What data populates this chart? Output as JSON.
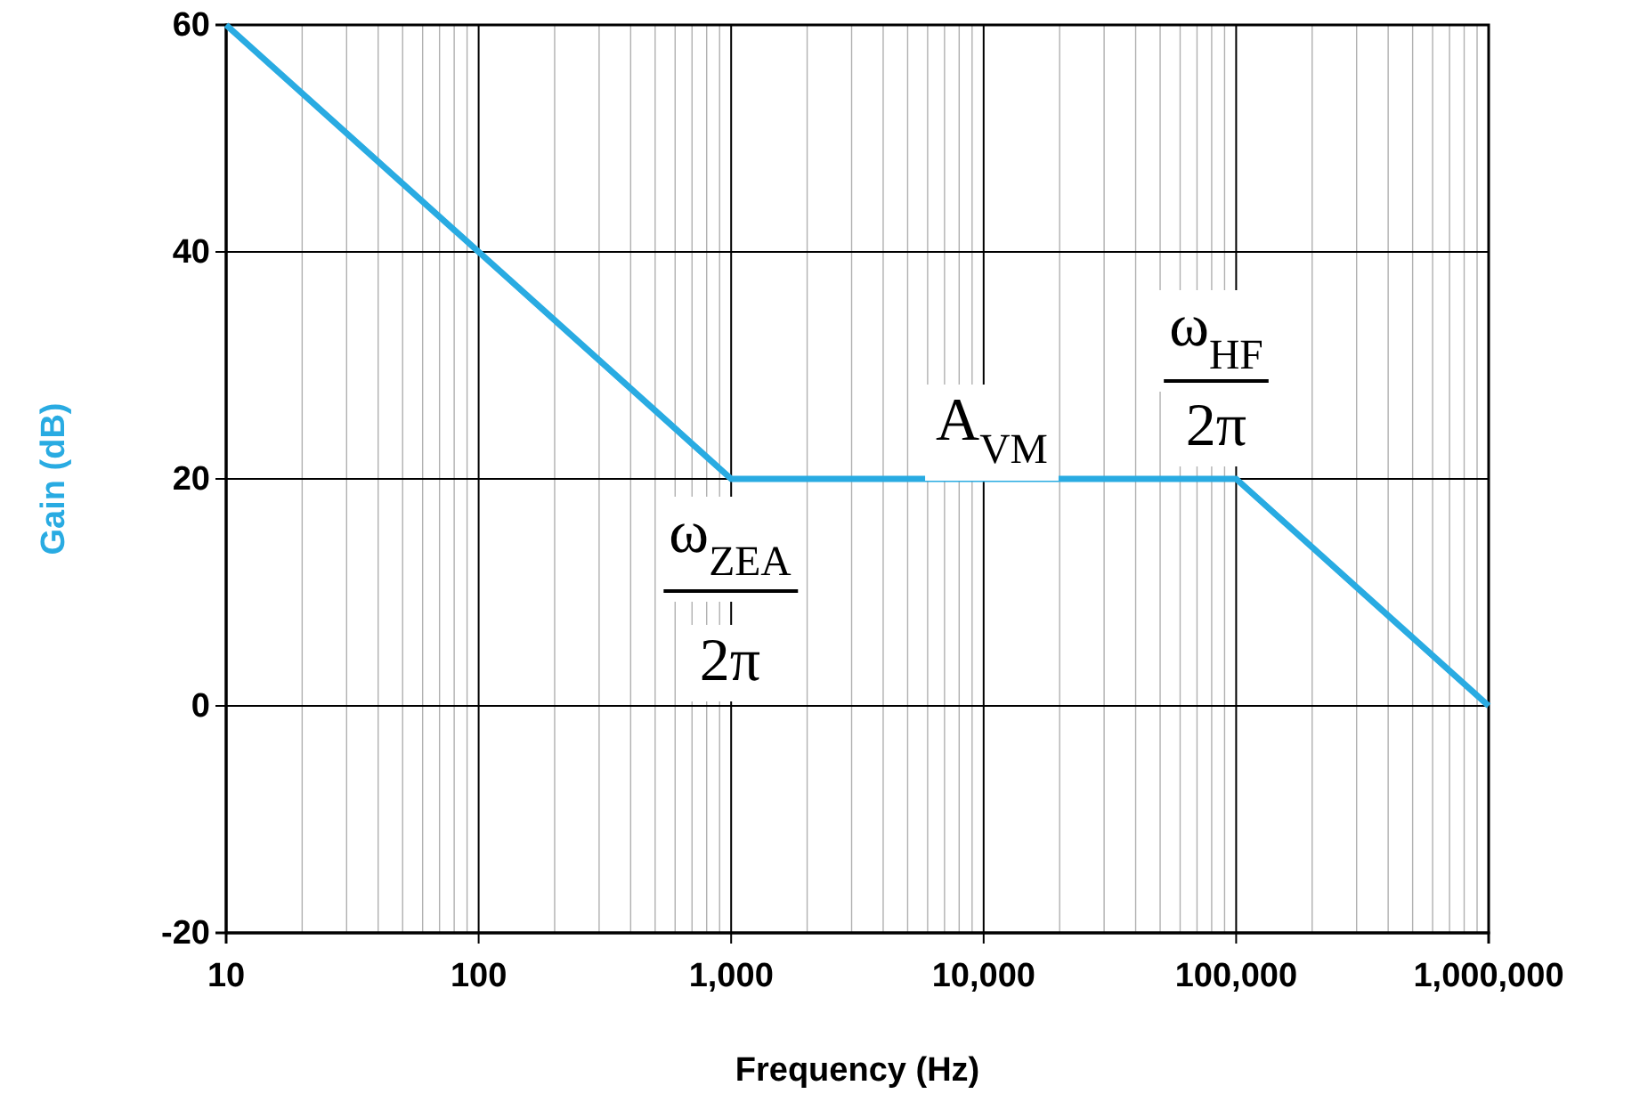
{
  "chart_data": {
    "type": "line",
    "xlabel": "Frequency (Hz)",
    "ylabel": "Gain (dB)",
    "log": "x",
    "grid": true,
    "xlim": [
      10,
      1000000
    ],
    "xticks": [
      10,
      100,
      {
        "value": 1000,
        "label": "1,000"
      },
      {
        "value": 10000,
        "label": "10,000"
      },
      {
        "value": 100000,
        "label": "100,000"
      },
      {
        "value": 1000000,
        "label": "1,000,000"
      }
    ],
    "ylim": [
      -20,
      60
    ],
    "yticks": [
      -20,
      0,
      20,
      40,
      60
    ],
    "series": [
      {
        "color": "#29abe2",
        "x": [
          10,
          1000,
          100000,
          1000000
        ],
        "values": [
          60,
          20,
          20,
          0
        ]
      }
    ],
    "annotations": [
      "ω$_{ZEA}$",
      "2π",
      "A$_{VM}$",
      "ω$_{HF}$",
      "2π"
    ]
  }
}
